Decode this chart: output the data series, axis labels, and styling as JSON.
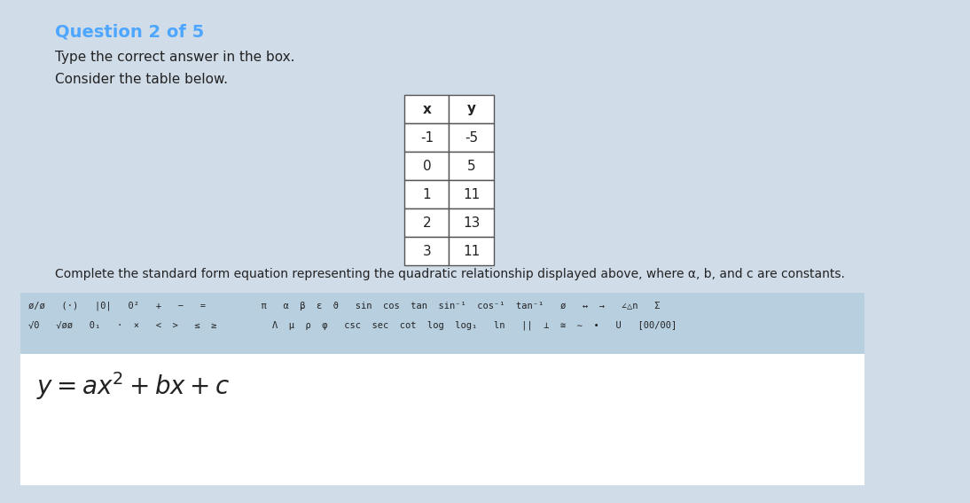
{
  "title": "Question 2 of 5",
  "title_color": "#4da6ff",
  "bg_color": "#d0dce8",
  "instruction1": "Type the correct answer in the box.",
  "instruction2": "Consider the table below.",
  "table_x": [
    "x",
    "-1",
    "0",
    "1",
    "2",
    "3"
  ],
  "table_y": [
    "y",
    "-5",
    "5",
    "11",
    "13",
    "11"
  ],
  "complete_text": "Complete the standard form equation representing the quadratic relationship displayed above, where α, b, and c are constants.",
  "toolbar_row1": "ø/ø   (·)   |0|   0²   +   −   =          π   α  β  ε  ϑ   sin  cos  tan  sin⁻¹  cos⁻¹  tan⁻¹   ø   ↔  →   ∠△n   Σ",
  "toolbar_row2": "√0   √øø   0₁   ·  ×   <  >   ≤  ≥          Λ  μ  ρ  φ   csc  sec  cot  log  log₁   ln   ||  ⊥  ≅  ∼  •   U   [00/00]",
  "equation": "y = ax² + bx + c",
  "answer_bg": "#ffffff",
  "toolbar_bg": "#b8cfe0"
}
